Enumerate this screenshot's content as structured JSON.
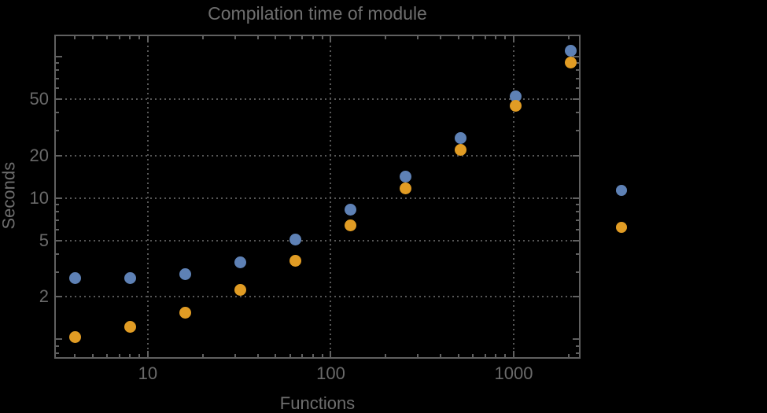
{
  "chart_data": {
    "type": "scatter",
    "title": "Compilation time of module",
    "xlabel": "Functions",
    "ylabel": "Seconds",
    "x_scale": "log",
    "y_scale": "log",
    "xlim": [
      3.08,
      2320
    ],
    "ylim": [
      0.73,
      143
    ],
    "grid": "dotted, at labeled major ticks only",
    "x_major_ticks": [
      10,
      100,
      1000
    ],
    "x_major_tick_labels": [
      "10",
      "100",
      "1000"
    ],
    "x_minor_ticks": [
      4,
      5,
      6,
      7,
      8,
      9,
      20,
      30,
      40,
      50,
      60,
      70,
      80,
      90,
      200,
      300,
      400,
      500,
      600,
      700,
      800,
      900,
      2000
    ],
    "y_major_ticks": [
      2,
      5,
      10,
      20,
      50
    ],
    "y_major_tick_labels": [
      "2",
      "5",
      "10",
      "20",
      "50"
    ],
    "y_unlabeled_major_ticks": [
      1,
      100
    ],
    "y_minor_ticks": [
      0.8,
      0.9,
      3,
      4,
      6,
      7,
      8,
      9,
      30,
      40,
      60,
      70,
      80,
      90
    ],
    "x": [
      4,
      8,
      16,
      32,
      64,
      128,
      256,
      512,
      1024,
      2048
    ],
    "series": [
      {
        "name": "blue-series",
        "color": "#5E81B5",
        "values": [
          2.7,
          2.7,
          2.9,
          3.5,
          5.1,
          8.3,
          14.1,
          26.5,
          52,
          110
        ]
      },
      {
        "name": "orange-series",
        "color": "#E19C24",
        "values": [
          1.04,
          1.22,
          1.55,
          2.25,
          3.6,
          6.4,
          11.7,
          22,
          45,
          91
        ]
      }
    ],
    "legend": {
      "position": "right-of-frame",
      "items": [
        {
          "swatch_color": "#5E81B5",
          "label": ""
        },
        {
          "swatch_color": "#E19C24",
          "label": ""
        }
      ]
    }
  },
  "colors": {
    "background": "#000000",
    "frame": "#606060",
    "gridline": "#565656",
    "title_text": "#6e6e6e",
    "tick_label_text": "#6a6a6a"
  }
}
